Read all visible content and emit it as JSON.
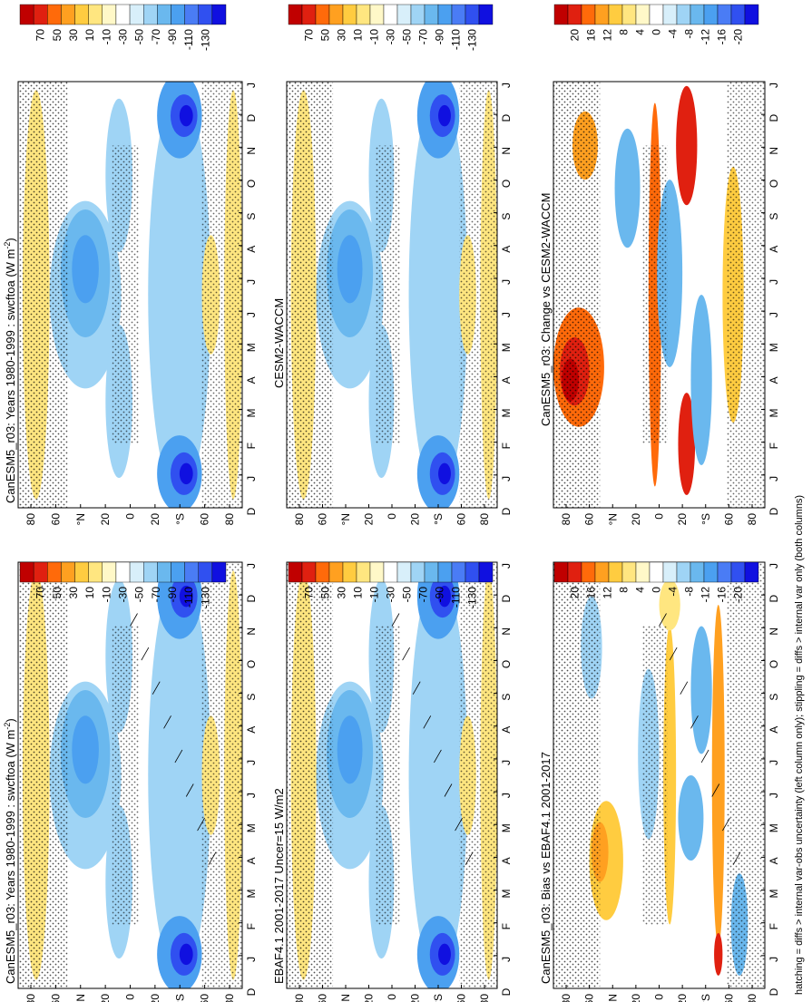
{
  "figure": {
    "footnote": "hatching = diffs > internal var-obs uncertainty (left column only); stippling = diffs > internal var only (both columns)"
  },
  "colors": {
    "wb": [
      "#1010e0",
      "#3050f0",
      "#4a7cf5",
      "#4ba0f0",
      "#6ab8ee",
      "#9fd4f5",
      "#d8effa",
      "#ffffff",
      "#fff8c8",
      "#ffe680",
      "#ffcc40",
      "#ffa020",
      "#ff6a0a",
      "#e02010",
      "#c00000"
    ]
  },
  "chart_data": [
    {
      "type": "heatmap",
      "id": "A",
      "title": "CanESM5_r03: Years 1980-1999 : swcftoa (W m",
      "title_sup": "-2",
      "title_end": ")",
      "x_labels": [
        "D",
        "J",
        "F",
        "M",
        "A",
        "M",
        "J",
        "J",
        "A",
        "S",
        "O",
        "N",
        "D",
        "J"
      ],
      "y_labels": [
        "80",
        "60",
        "°N",
        "20",
        "0",
        "20",
        "°S",
        "60",
        "80"
      ],
      "colorbar": [
        "70",
        "50",
        "30",
        "10",
        "-10",
        "-30",
        "-50",
        "-70",
        "-90",
        "-110",
        "-130"
      ],
      "stipple": true,
      "hatch": true
    },
    {
      "type": "heatmap",
      "id": "B",
      "title": "CanESM5_r03: Years 1980-1999 : swcftoa (W m",
      "title_sup": "-2",
      "title_end": ")",
      "x_labels": [
        "D",
        "J",
        "F",
        "M",
        "A",
        "M",
        "J",
        "J",
        "A",
        "S",
        "O",
        "N",
        "D",
        "J"
      ],
      "y_labels": [
        "80",
        "60",
        "°N",
        "20",
        "0",
        "20",
        "°S",
        "60",
        "80"
      ],
      "colorbar": [
        "70",
        "50",
        "30",
        "10",
        "-10",
        "-30",
        "-50",
        "-70",
        "-90",
        "-110",
        "-130"
      ],
      "stipple": true,
      "hatch": false
    },
    {
      "type": "heatmap",
      "id": "C",
      "title": "EBAF4.1 2001-2017 Uncer=15 W/m2",
      "x_labels": [
        "D",
        "J",
        "F",
        "M",
        "A",
        "M",
        "J",
        "J",
        "A",
        "S",
        "O",
        "N",
        "D",
        "J"
      ],
      "y_labels": [
        "80",
        "60",
        "°N",
        "20",
        "0",
        "20",
        "°S",
        "60",
        "80"
      ],
      "colorbar": [
        "70",
        "50",
        "30",
        "10",
        "-10",
        "-30",
        "-50",
        "-70",
        "-90",
        "-110",
        "-130"
      ],
      "stipple": true,
      "hatch": true
    },
    {
      "type": "heatmap",
      "id": "D",
      "title": "CESM2-WACCM",
      "x_labels": [
        "D",
        "J",
        "F",
        "M",
        "A",
        "M",
        "J",
        "J",
        "A",
        "S",
        "O",
        "N",
        "D",
        "J"
      ],
      "y_labels": [
        "80",
        "60",
        "°N",
        "20",
        "0",
        "20",
        "°S",
        "60",
        "80"
      ],
      "colorbar": [
        "70",
        "50",
        "30",
        "10",
        "-10",
        "-30",
        "-50",
        "-70",
        "-90",
        "-110",
        "-130"
      ],
      "stipple": true,
      "hatch": false
    },
    {
      "type": "heatmap",
      "id": "E",
      "title": "CanESM5_r03: Bias vs EBAF4.1 2001-2017",
      "x_labels": [
        "D",
        "J",
        "F",
        "M",
        "A",
        "M",
        "J",
        "J",
        "A",
        "S",
        "O",
        "N",
        "D",
        "J"
      ],
      "y_labels": [
        "80",
        "60",
        "°N",
        "20",
        "0",
        "20",
        "°S",
        "60",
        "80"
      ],
      "colorbar": [
        "20",
        "16",
        "12",
        "8",
        "4",
        "0",
        "-4",
        "-8",
        "-12",
        "-16",
        "-20"
      ],
      "stipple": true,
      "hatch": true
    },
    {
      "type": "heatmap",
      "id": "F",
      "title": "CanESM5_r03: Change vs CESM2-WACCM",
      "x_labels": [
        "D",
        "J",
        "F",
        "M",
        "A",
        "M",
        "J",
        "J",
        "A",
        "S",
        "O",
        "N",
        "D",
        "J"
      ],
      "y_labels": [
        "80",
        "60",
        "°N",
        "20",
        "0",
        "20",
        "°S",
        "60",
        "80"
      ],
      "colorbar": [
        "20",
        "16",
        "12",
        "8",
        "4",
        "0",
        "-4",
        "-8",
        "-12",
        "-16",
        "-20"
      ],
      "stipple": true,
      "hatch": false
    }
  ]
}
